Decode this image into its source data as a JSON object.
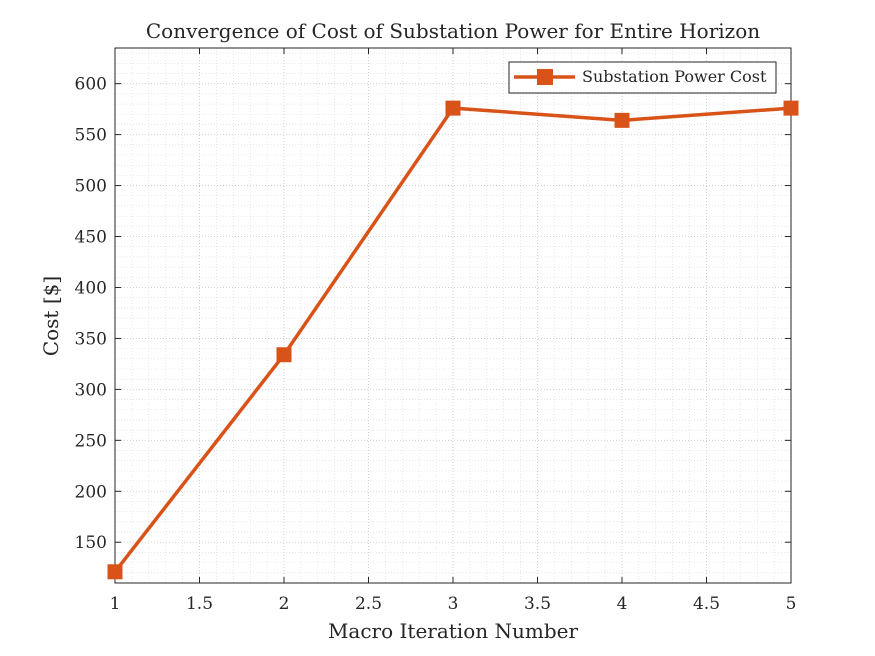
{
  "chart_data": {
    "type": "line",
    "title": "Convergence of Cost of Substation Power for Entire Horizon",
    "xlabel": "Macro Iteration Number",
    "ylabel": "Cost [$]",
    "xlim": [
      1,
      5
    ],
    "ylim": [
      110,
      635
    ],
    "x_ticks": [
      "1",
      "1.5",
      "2",
      "2.5",
      "3",
      "3.5",
      "4",
      "4.5",
      "5"
    ],
    "y_ticks": [
      "150",
      "200",
      "250",
      "300",
      "350",
      "400",
      "450",
      "500",
      "550",
      "600"
    ],
    "grid": true,
    "minor_grid": true,
    "legend_position": "top-right",
    "series": [
      {
        "name": "Substation Power Cost",
        "color": "#d95319",
        "marker": "square",
        "x": [
          1,
          2,
          3,
          4,
          5
        ],
        "y": [
          121,
          334,
          576,
          564,
          576
        ]
      }
    ]
  }
}
